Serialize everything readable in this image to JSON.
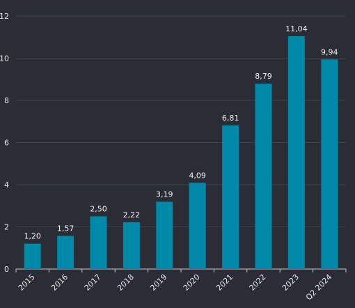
{
  "chart_data": {
    "type": "bar",
    "categories": [
      "2015",
      "2016",
      "2017",
      "2018",
      "2019",
      "2020",
      "2021",
      "2022",
      "2023",
      "Q2 2024"
    ],
    "values": [
      1.2,
      1.57,
      2.5,
      2.22,
      3.19,
      4.09,
      6.81,
      8.79,
      11.04,
      9.94
    ],
    "value_labels": [
      "1,20",
      "1,57",
      "2,50",
      "2,22",
      "3,19",
      "4,09",
      "6,81",
      "8,79",
      "11,04",
      "9,94"
    ],
    "ylim": [
      0,
      12
    ],
    "yticks": [
      "0",
      "2",
      "4",
      "6",
      "8",
      "10",
      "12"
    ],
    "yticks_values": [
      0,
      2,
      4,
      6,
      8,
      10,
      12
    ],
    "title": "",
    "xlabel": "",
    "ylabel": "",
    "grid": true,
    "colors": {
      "bar": "#0088a8",
      "background": "#2a2d35",
      "grid": "#3e424c",
      "text": "#e6e6e6"
    }
  }
}
